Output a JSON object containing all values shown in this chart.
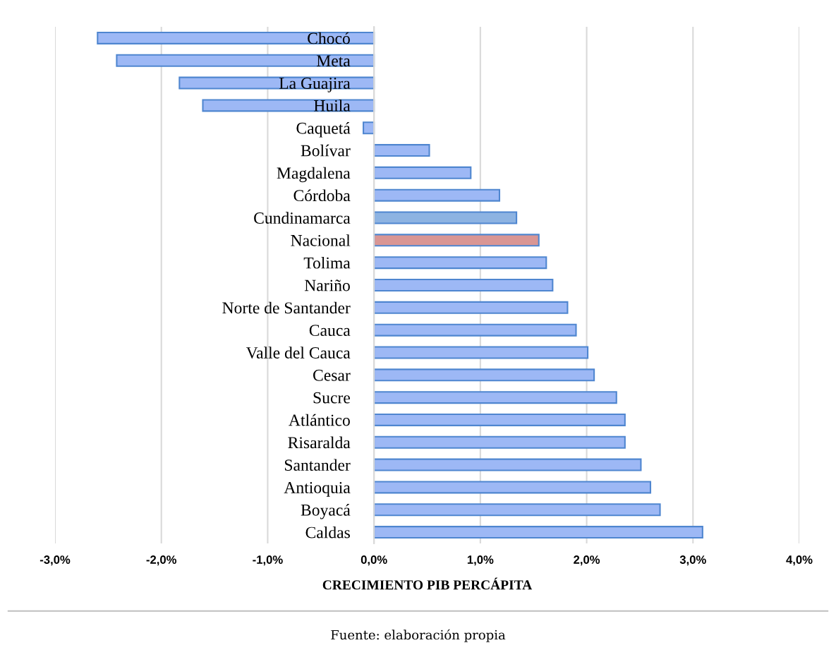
{
  "chart_data": {
    "type": "bar",
    "orientation": "horizontal",
    "xlabel": "CRECIMIENTO PIB PERCÁPITA",
    "categories": [
      "Chocó",
      "Meta",
      "La Guajira",
      "Huila",
      "Caquetá",
      "Bolívar",
      "Magdalena",
      "Córdoba",
      "Cundinamarca",
      "Nacional",
      "Tolima",
      "Nariño",
      "Norte de Santander",
      "Cauca",
      "Valle del Cauca",
      "Cesar",
      "Sucre",
      "Atlántico",
      "Risaralda",
      "Santander",
      "Antioquia",
      "Boyacá",
      "Caldas"
    ],
    "values": [
      -2.6,
      -2.42,
      -1.83,
      -1.61,
      -0.1,
      0.52,
      0.91,
      1.18,
      1.34,
      1.55,
      1.62,
      1.68,
      1.82,
      1.9,
      2.01,
      2.07,
      2.28,
      2.36,
      2.36,
      2.51,
      2.6,
      2.69,
      3.09
    ],
    "colors": [
      "#9db8f5",
      "#9db8f5",
      "#9db8f5",
      "#9db8f5",
      "#9db8f5",
      "#9db8f5",
      "#9db8f5",
      "#9db8f5",
      "#8db3e2",
      "#d99694",
      "#9db8f5",
      "#9db8f5",
      "#9db8f5",
      "#9db8f5",
      "#9db8f5",
      "#9db8f5",
      "#9db8f5",
      "#9db8f5",
      "#9db8f5",
      "#9db8f5",
      "#9db8f5",
      "#9db8f5",
      "#9db8f5"
    ],
    "xlim": [
      -3.0,
      4.0
    ],
    "xticks": [
      {
        "value": -3,
        "label": "-3,0%"
      },
      {
        "value": -2,
        "label": "-2,0%"
      },
      {
        "value": -1,
        "label": "-1,0%"
      },
      {
        "value": 0,
        "label": "0,0%"
      },
      {
        "value": 1,
        "label": "1,0%"
      },
      {
        "value": 2,
        "label": "2,0%"
      },
      {
        "value": 3,
        "label": "3,0%"
      },
      {
        "value": 4,
        "label": "4,0%"
      }
    ],
    "grid": "x",
    "annotations": [
      "Fuente: elaboración propia"
    ]
  }
}
